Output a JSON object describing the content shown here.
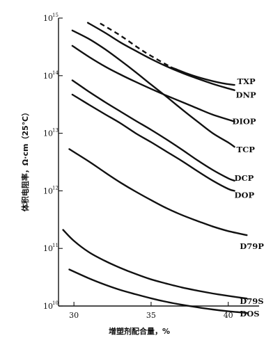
{
  "chart_data": {
    "type": "line",
    "title": "",
    "xlabel": "增塑剂配合量，%",
    "ylabel": "体积电阻率，Ω·cm（25℃）",
    "y_scale": "log",
    "xlim": [
      29,
      42
    ],
    "ylim": [
      10000000000.0,
      1000000000000000.0
    ],
    "x_ticks": [
      {
        "value": 30,
        "label": "30"
      },
      {
        "value": 35,
        "label": "35"
      },
      {
        "value": 40,
        "label": "40"
      }
    ],
    "y_ticks": [
      {
        "value": 10000000000.0,
        "base": "10",
        "exp": "10"
      },
      {
        "value": 100000000000.0,
        "base": "10",
        "exp": "11"
      },
      {
        "value": 1000000000000.0,
        "base": "10",
        "exp": "12"
      },
      {
        "value": 10000000000000.0,
        "base": "10",
        "exp": "13"
      },
      {
        "value": 100000000000000.0,
        "base": "10",
        "exp": "14"
      },
      {
        "value": 1000000000000000.0,
        "base": "10",
        "exp": "15"
      }
    ],
    "grid": false,
    "legend": "inline labels at right end of curves",
    "series": [
      {
        "name": "TXP",
        "dashed_until_x": 36.3,
        "x": [
          31.7,
          33.0,
          34.2,
          35.0,
          36.3,
          37.5,
          38.5,
          39.6,
          40.4
        ],
        "y": [
          810000000000000.0,
          500000000000000.0,
          300000000000000.0,
          220000000000000.0,
          140000000000000.0,
          105000000000000.0,
          87000000000000.0,
          74000000000000.0,
          69000000000000.0
        ]
      },
      {
        "name": "DNP",
        "x": [
          30.9,
          32.0,
          33.0,
          34.0,
          35.0,
          36.0,
          37.0,
          38.0,
          39.0,
          40.0,
          40.4
        ],
        "y": [
          830000000000000.0,
          560000000000000.0,
          380000000000000.0,
          270000000000000.0,
          195000000000000.0,
          145000000000000.0,
          112000000000000.0,
          89000000000000.0,
          72000000000000.0,
          60000000000000.0,
          56000000000000.0
        ]
      },
      {
        "name": "DIOP",
        "x": [
          29.9,
          31.0,
          32.0,
          33.0,
          34.0,
          35.0,
          36.0,
          37.0,
          38.0,
          39.0,
          40.4
        ],
        "y": [
          330000000000000.0,
          210000000000000.0,
          145000000000000.0,
          105000000000000.0,
          78000000000000.0,
          59000000000000.0,
          45000000000000.0,
          35000000000000.0,
          27000000000000.0,
          21000000000000.0,
          16000000000000.0
        ]
      },
      {
        "name": "TCP",
        "x": [
          29.9,
          31.0,
          32.0,
          33.0,
          34.0,
          35.0,
          36.0,
          37.0,
          38.0,
          39.0,
          40.0,
          40.4
        ],
        "y": [
          610000000000000.0,
          430000000000000.0,
          290000000000000.0,
          185000000000000.0,
          115000000000000.0,
          70000000000000.0,
          43000000000000.0,
          26000000000000.0,
          16000000000000.0,
          10000000000000.0,
          6900000000000.0,
          5800000000000.0
        ]
      },
      {
        "name": "DCP",
        "x": [
          29.9,
          31.0,
          32.0,
          33.0,
          34.0,
          35.0,
          36.0,
          37.0,
          38.0,
          39.0,
          40.0,
          40.4
        ],
        "y": [
          83000000000000.0,
          52000000000000.0,
          35000000000000.0,
          24000000000000.0,
          16500000000000.0,
          11500000000000.0,
          7800000000000.0,
          5200000000000.0,
          3400000000000.0,
          2300000000000.0,
          1650000000000.0,
          1500000000000.0
        ]
      },
      {
        "name": "DOP",
        "x": [
          29.9,
          31.0,
          32.0,
          33.0,
          34.0,
          35.0,
          36.0,
          37.0,
          38.0,
          39.0,
          40.0,
          40.4
        ],
        "y": [
          47000000000000.0,
          31000000000000.0,
          21500000000000.0,
          15000000000000.0,
          10000000000000.0,
          7000000000000.0,
          4800000000000.0,
          3300000000000.0,
          2200000000000.0,
          1500000000000.0,
          1080000000000.0,
          1000000000000.0
        ]
      },
      {
        "name": "D79P",
        "x": [
          29.7,
          31.0,
          32.0,
          33.0,
          34.0,
          35.0,
          36.0,
          37.0,
          38.0,
          39.0,
          40.0,
          41.2
        ],
        "y": [
          5300000000000.0,
          3200000000000.0,
          2100000000000.0,
          1400000000000.0,
          970000000000.0,
          690000000000.0,
          500000000000.0,
          380000000000.0,
          300000000000.0,
          240000000000.0,
          200000000000.0,
          170000000000.0
        ]
      },
      {
        "name": "DOS",
        "x": [
          29.7,
          31.0,
          32.0,
          33.0,
          34.0,
          35.0,
          36.0,
          37.0,
          38.0,
          39.0,
          40.0,
          41.2
        ],
        "y": [
          43000000000.0,
          30000000000.0,
          23500000000.0,
          19000000000.0,
          16000000000.0,
          13600000000.0,
          11800000000.0,
          10500000000.0,
          9500000000.0,
          8700000000.0,
          8100000000.0,
          7600000000.0
        ]
      },
      {
        "name": "D79S",
        "x": [
          29.3,
          30.0,
          31.0,
          32.0,
          33.0,
          34.0,
          35.0,
          36.0,
          37.0,
          38.0,
          39.0,
          40.0,
          41.2
        ],
        "y": [
          210000000000.0,
          135000000000.0,
          85000000000.0,
          61000000000.0,
          46000000000.0,
          36000000000.0,
          29000000000.0,
          24500000000.0,
          21000000000.0,
          18500000000.0,
          16500000000.0,
          15000000000.0,
          13500000000.0
        ]
      }
    ]
  }
}
